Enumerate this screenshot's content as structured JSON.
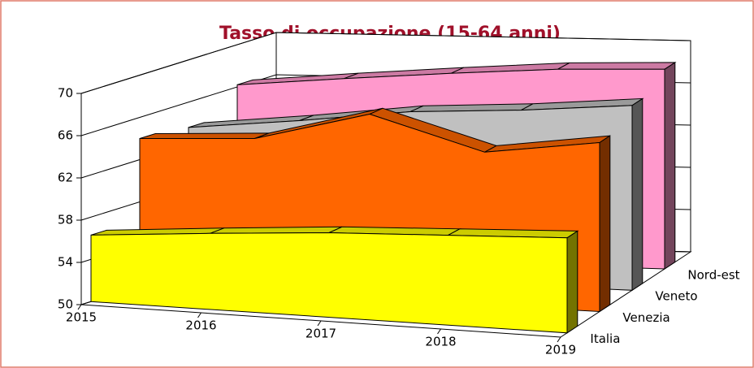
{
  "chart_data": {
    "type": "area3d",
    "title": "Tasso di occupazione (15-64 anni)",
    "categories": [
      "2015",
      "2016",
      "2017",
      "2018",
      "2019"
    ],
    "series": [
      {
        "name": "Italia",
        "color": "#ffff00",
        "values": [
          56.3,
          57.2,
          58.0,
          58.5,
          59.0
        ]
      },
      {
        "name": "Venezia",
        "color": "#ff6600",
        "values": [
          64.0,
          64.6,
          67.5,
          64.5,
          66.0
        ]
      },
      {
        "name": "Veneto",
        "color": "#c0c0c0",
        "values": [
          63.6,
          64.7,
          66.0,
          66.6,
          67.5
        ]
      },
      {
        "name": "Nord-est",
        "color": "#ff99cc",
        "values": [
          66.2,
          67.1,
          67.9,
          68.6,
          68.9
        ]
      }
    ],
    "ylim": [
      50,
      70
    ],
    "yticks": [
      50,
      54,
      58,
      62,
      66,
      70
    ],
    "grid": true
  }
}
